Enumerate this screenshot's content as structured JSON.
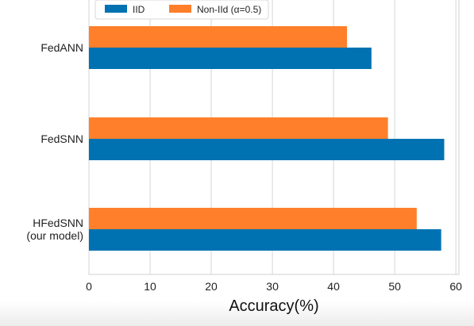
{
  "chart_data": {
    "type": "bar",
    "orientation": "horizontal",
    "categories": [
      "FedANN",
      "FedSNN",
      "HFedSNN\n(our model)"
    ],
    "series": [
      {
        "name": "IID",
        "values": [
          46.2,
          58.1,
          57.6
        ],
        "color": "#0072b2"
      },
      {
        "name": "Non-IId (α=0.5)",
        "values": [
          42.2,
          48.9,
          53.6
        ],
        "color": "#ff7f2a"
      }
    ],
    "xlabel": "Accuracy(%)",
    "ylabel": "",
    "xlim": [
      0,
      60.5
    ],
    "xticks": [
      0,
      10,
      20,
      30,
      40,
      50,
      60
    ],
    "grid": true,
    "legend_position": "top-left"
  }
}
